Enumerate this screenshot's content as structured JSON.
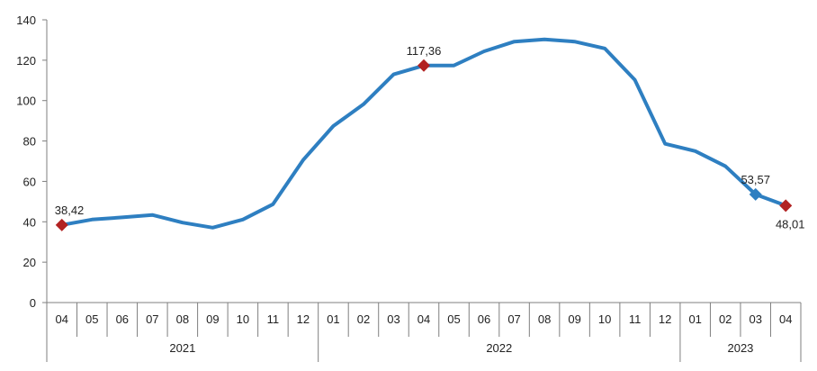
{
  "chart_data": {
    "type": "line",
    "title": "",
    "xlabel": "",
    "ylabel": "",
    "ylim": [
      0,
      140
    ],
    "yticks": [
      0,
      20,
      40,
      60,
      80,
      100,
      120,
      140
    ],
    "grid": false,
    "categories": [
      "04",
      "05",
      "06",
      "07",
      "08",
      "09",
      "10",
      "11",
      "12",
      "01",
      "02",
      "03",
      "04",
      "05",
      "06",
      "07",
      "08",
      "09",
      "10",
      "11",
      "12",
      "01",
      "02",
      "03",
      "04"
    ],
    "year_groups": [
      {
        "label": "2021",
        "start": 0,
        "end": 8
      },
      {
        "label": "2022",
        "start": 9,
        "end": 20
      },
      {
        "label": "2023",
        "start": 21,
        "end": 24
      }
    ],
    "series": [
      {
        "color": "#2e7fc1",
        "values": [
          38.42,
          41.1,
          42.2,
          43.4,
          39.6,
          37.1,
          41.1,
          48.7,
          70.6,
          87.4,
          98.2,
          113.0,
          117.36,
          117.4,
          124.4,
          129.2,
          130.3,
          129.2,
          125.8,
          110.2,
          78.6,
          75.0,
          67.5,
          53.57,
          48.01
        ]
      }
    ],
    "annotations": [
      {
        "index": 0,
        "text": "38,42",
        "marker_color": "#b22222",
        "position": "above"
      },
      {
        "index": 12,
        "text": "117,36",
        "marker_color": "#b22222",
        "position": "above"
      },
      {
        "index": 23,
        "text": "53,57",
        "marker_color": "#2e7fc1",
        "position": "above"
      },
      {
        "index": 24,
        "text": "48,01",
        "marker_color": "#b22222",
        "position": "below"
      }
    ],
    "axis_color": "#7f7f7f"
  }
}
